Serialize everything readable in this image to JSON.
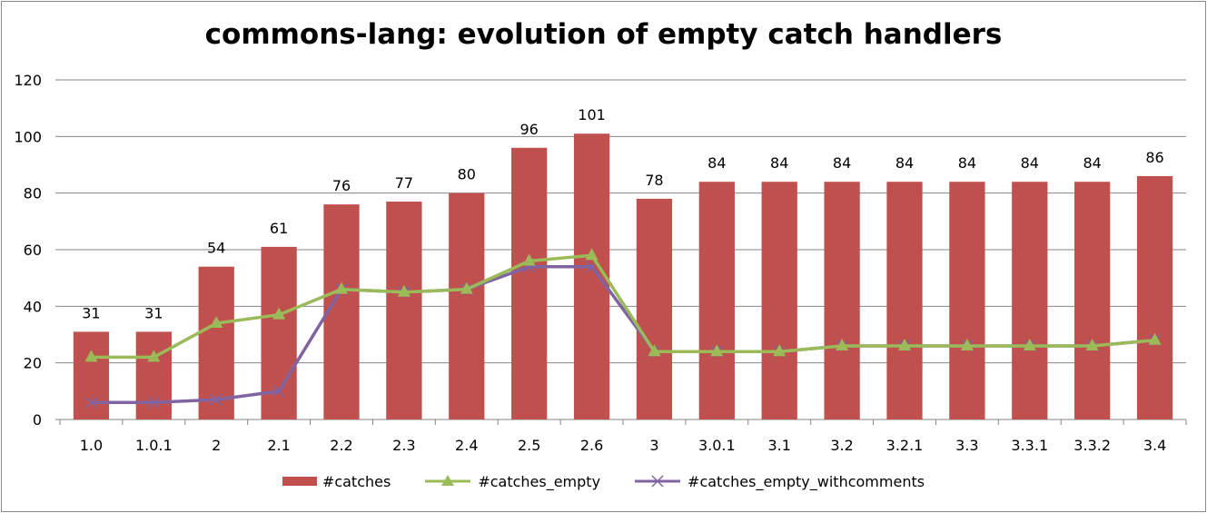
{
  "chart_data": {
    "type": "bar",
    "title": "commons-lang: evolution of empty catch handlers",
    "categories": [
      "1.0",
      "1.0.1",
      "2",
      "2.1",
      "2.2",
      "2.3",
      "2.4",
      "2.5",
      "2.6",
      "3",
      "3.0.1",
      "3.1",
      "3.2",
      "3.2.1",
      "3.3",
      "3.3.1",
      "3.3.2",
      "3.4"
    ],
    "ylim": [
      0,
      120
    ],
    "yticks": [
      0,
      20,
      40,
      60,
      80,
      100,
      120
    ],
    "grid": true,
    "legend_position": "bottom",
    "series": [
      {
        "name": "#catches",
        "kind": "bar",
        "color": "#c0504d",
        "show_labels": true,
        "values": [
          31,
          31,
          54,
          61,
          76,
          77,
          80,
          96,
          101,
          78,
          84,
          84,
          84,
          84,
          84,
          84,
          84,
          86
        ]
      },
      {
        "name": "#catches_empty",
        "kind": "line",
        "marker": "triangle",
        "color": "#9bbb59",
        "values": [
          22,
          22,
          34,
          37,
          46,
          45,
          46,
          56,
          58,
          24,
          24,
          24,
          26,
          26,
          26,
          26,
          26,
          28
        ]
      },
      {
        "name": "#catches_empty_withcomments",
        "kind": "line",
        "marker": "x",
        "color": "#8064a2",
        "values": [
          6,
          6,
          7,
          10,
          46,
          45,
          46,
          54,
          54,
          24,
          24,
          24,
          26,
          26,
          26,
          26,
          26,
          28
        ]
      }
    ]
  }
}
